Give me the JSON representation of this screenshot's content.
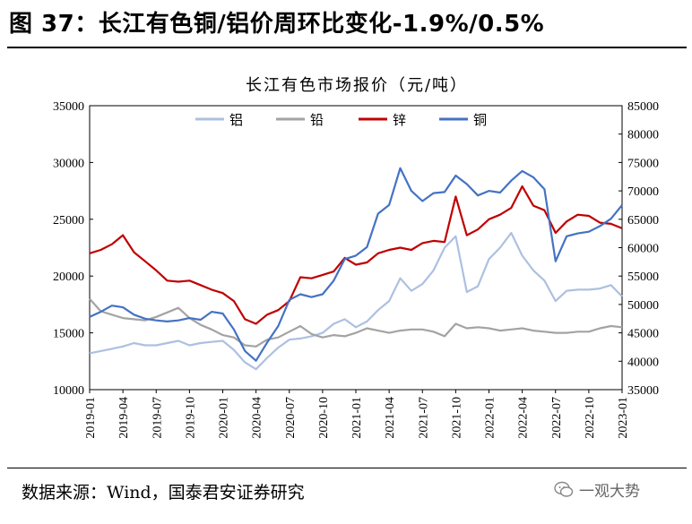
{
  "figure": {
    "title": "图 37：长江有色铜/铝价周环比变化-1.9%/0.5%",
    "source": "数据来源：Wind，国泰君安证券研究",
    "watermark": "一观大势"
  },
  "colors": {
    "aluminum": "#adc0e2",
    "lead": "#a3a3a3",
    "zinc": "#c00000",
    "copper": "#4472c4"
  },
  "chart_data": {
    "type": "line",
    "title": "长江有色市场报价（元/吨）",
    "xlabel": "",
    "ylabel": "",
    "x_ticks": [
      "2019-01",
      "2019-04",
      "2019-07",
      "2019-10",
      "2020-01",
      "2020-04",
      "2020-07",
      "2020-10",
      "2021-01",
      "2021-04",
      "2021-07",
      "2021-10",
      "2022-01",
      "2022-04",
      "2022-07",
      "2022-10",
      "2023-01"
    ],
    "xlim": [
      "2019-01",
      "2023-01"
    ],
    "ylim_left": [
      10000,
      35000
    ],
    "ylim_right": [
      35000,
      85000
    ],
    "yticks_left": [
      10000,
      15000,
      20000,
      25000,
      30000,
      35000
    ],
    "yticks_right": [
      35000,
      40000,
      45000,
      50000,
      55000,
      60000,
      65000,
      70000,
      75000,
      80000,
      85000
    ],
    "grid": false,
    "legend_position": "top",
    "series": [
      {
        "name": "铝",
        "axis": "left",
        "key": "aluminum",
        "points": [
          [
            "2019-01",
            13200
          ],
          [
            "2019-02",
            13400
          ],
          [
            "2019-03",
            13600
          ],
          [
            "2019-04",
            13800
          ],
          [
            "2019-05",
            14100
          ],
          [
            "2019-06",
            13900
          ],
          [
            "2019-07",
            13900
          ],
          [
            "2019-08",
            14100
          ],
          [
            "2019-09",
            14300
          ],
          [
            "2019-10",
            13900
          ],
          [
            "2019-11",
            14100
          ],
          [
            "2019-12",
            14200
          ],
          [
            "2020-01",
            14300
          ],
          [
            "2020-02",
            13500
          ],
          [
            "2020-03",
            12400
          ],
          [
            "2020-04",
            11800
          ],
          [
            "2020-05",
            12800
          ],
          [
            "2020-06",
            13700
          ],
          [
            "2020-07",
            14400
          ],
          [
            "2020-08",
            14500
          ],
          [
            "2020-09",
            14700
          ],
          [
            "2020-10",
            15000
          ],
          [
            "2020-11",
            15800
          ],
          [
            "2020-12",
            16200
          ],
          [
            "2021-01",
            15500
          ],
          [
            "2021-02",
            16000
          ],
          [
            "2021-03",
            17000
          ],
          [
            "2021-04",
            17800
          ],
          [
            "2021-05",
            19800
          ],
          [
            "2021-06",
            18700
          ],
          [
            "2021-07",
            19300
          ],
          [
            "2021-08",
            20500
          ],
          [
            "2021-09",
            22500
          ],
          [
            "2021-10",
            23500
          ],
          [
            "2021-11",
            18600
          ],
          [
            "2021-12",
            19100
          ],
          [
            "2022-01",
            21500
          ],
          [
            "2022-02",
            22500
          ],
          [
            "2022-03",
            23800
          ],
          [
            "2022-04",
            21800
          ],
          [
            "2022-05",
            20500
          ],
          [
            "2022-06",
            19600
          ],
          [
            "2022-07",
            17800
          ],
          [
            "2022-08",
            18700
          ],
          [
            "2022-09",
            18800
          ],
          [
            "2022-10",
            18800
          ],
          [
            "2022-11",
            18900
          ],
          [
            "2022-12",
            19200
          ],
          [
            "2023-01",
            18200
          ]
        ]
      },
      {
        "name": "铅",
        "axis": "left",
        "key": "lead",
        "points": [
          [
            "2019-01",
            18000
          ],
          [
            "2019-02",
            16900
          ],
          [
            "2019-03",
            16600
          ],
          [
            "2019-04",
            16300
          ],
          [
            "2019-05",
            16200
          ],
          [
            "2019-06",
            16100
          ],
          [
            "2019-07",
            16400
          ],
          [
            "2019-08",
            16800
          ],
          [
            "2019-09",
            17200
          ],
          [
            "2019-10",
            16300
          ],
          [
            "2019-11",
            15700
          ],
          [
            "2019-12",
            15300
          ],
          [
            "2020-01",
            14800
          ],
          [
            "2020-02",
            14600
          ],
          [
            "2020-03",
            13900
          ],
          [
            "2020-04",
            13800
          ],
          [
            "2020-05",
            14400
          ],
          [
            "2020-06",
            14600
          ],
          [
            "2020-07",
            15100
          ],
          [
            "2020-08",
            15600
          ],
          [
            "2020-09",
            14900
          ],
          [
            "2020-10",
            14600
          ],
          [
            "2020-11",
            14800
          ],
          [
            "2020-12",
            14700
          ],
          [
            "2021-01",
            15000
          ],
          [
            "2021-02",
            15400
          ],
          [
            "2021-03",
            15200
          ],
          [
            "2021-04",
            15000
          ],
          [
            "2021-05",
            15200
          ],
          [
            "2021-06",
            15300
          ],
          [
            "2021-07",
            15300
          ],
          [
            "2021-08",
            15100
          ],
          [
            "2021-09",
            14700
          ],
          [
            "2021-10",
            15800
          ],
          [
            "2021-11",
            15400
          ],
          [
            "2021-12",
            15500
          ],
          [
            "2022-01",
            15400
          ],
          [
            "2022-02",
            15200
          ],
          [
            "2022-03",
            15300
          ],
          [
            "2022-04",
            15400
          ],
          [
            "2022-05",
            15200
          ],
          [
            "2022-06",
            15100
          ],
          [
            "2022-07",
            15000
          ],
          [
            "2022-08",
            15000
          ],
          [
            "2022-09",
            15100
          ],
          [
            "2022-10",
            15100
          ],
          [
            "2022-11",
            15400
          ],
          [
            "2022-12",
            15600
          ],
          [
            "2023-01",
            15500
          ]
        ]
      },
      {
        "name": "锌",
        "axis": "left",
        "key": "zinc",
        "points": [
          [
            "2019-01",
            22000
          ],
          [
            "2019-02",
            22300
          ],
          [
            "2019-03",
            22800
          ],
          [
            "2019-04",
            23600
          ],
          [
            "2019-05",
            22100
          ],
          [
            "2019-06",
            21300
          ],
          [
            "2019-07",
            20500
          ],
          [
            "2019-08",
            19600
          ],
          [
            "2019-09",
            19500
          ],
          [
            "2019-10",
            19600
          ],
          [
            "2019-11",
            19200
          ],
          [
            "2019-12",
            18800
          ],
          [
            "2020-01",
            18500
          ],
          [
            "2020-02",
            17800
          ],
          [
            "2020-03",
            16200
          ],
          [
            "2020-04",
            15800
          ],
          [
            "2020-05",
            16600
          ],
          [
            "2020-06",
            17000
          ],
          [
            "2020-07",
            17800
          ],
          [
            "2020-08",
            19900
          ],
          [
            "2020-09",
            19800
          ],
          [
            "2020-10",
            20100
          ],
          [
            "2020-11",
            20400
          ],
          [
            "2020-12",
            21600
          ],
          [
            "2021-01",
            21000
          ],
          [
            "2021-02",
            21200
          ],
          [
            "2021-03",
            22000
          ],
          [
            "2021-04",
            22300
          ],
          [
            "2021-05",
            22500
          ],
          [
            "2021-06",
            22300
          ],
          [
            "2021-07",
            22900
          ],
          [
            "2021-08",
            23100
          ],
          [
            "2021-09",
            23000
          ],
          [
            "2021-10",
            27000
          ],
          [
            "2021-11",
            23600
          ],
          [
            "2021-12",
            24100
          ],
          [
            "2022-01",
            25000
          ],
          [
            "2022-02",
            25400
          ],
          [
            "2022-03",
            26000
          ],
          [
            "2022-04",
            27900
          ],
          [
            "2022-05",
            26200
          ],
          [
            "2022-06",
            25800
          ],
          [
            "2022-07",
            23800
          ],
          [
            "2022-08",
            24800
          ],
          [
            "2022-09",
            25400
          ],
          [
            "2022-10",
            25300
          ],
          [
            "2022-11",
            24700
          ],
          [
            "2022-12",
            24600
          ],
          [
            "2023-01",
            24200
          ]
        ]
      },
      {
        "name": "铜",
        "axis": "right",
        "key": "copper",
        "points": [
          [
            "2019-01",
            47800
          ],
          [
            "2019-02",
            48700
          ],
          [
            "2019-03",
            49800
          ],
          [
            "2019-04",
            49500
          ],
          [
            "2019-05",
            48200
          ],
          [
            "2019-06",
            47500
          ],
          [
            "2019-07",
            47200
          ],
          [
            "2019-08",
            47000
          ],
          [
            "2019-09",
            47200
          ],
          [
            "2019-10",
            47600
          ],
          [
            "2019-11",
            47300
          ],
          [
            "2019-12",
            48700
          ],
          [
            "2020-01",
            48400
          ],
          [
            "2020-02",
            45600
          ],
          [
            "2020-03",
            41800
          ],
          [
            "2020-04",
            40100
          ],
          [
            "2020-05",
            43300
          ],
          [
            "2020-06",
            46200
          ],
          [
            "2020-07",
            50800
          ],
          [
            "2020-08",
            51800
          ],
          [
            "2020-09",
            51300
          ],
          [
            "2020-10",
            51800
          ],
          [
            "2020-11",
            54200
          ],
          [
            "2020-12",
            58000
          ],
          [
            "2021-01",
            58600
          ],
          [
            "2021-02",
            60100
          ],
          [
            "2021-03",
            66000
          ],
          [
            "2021-04",
            67500
          ],
          [
            "2021-05",
            74000
          ],
          [
            "2021-06",
            70000
          ],
          [
            "2021-07",
            68200
          ],
          [
            "2021-08",
            69600
          ],
          [
            "2021-09",
            69800
          ],
          [
            "2021-10",
            72700
          ],
          [
            "2021-11",
            71200
          ],
          [
            "2021-12",
            69200
          ],
          [
            "2022-01",
            70000
          ],
          [
            "2022-02",
            69700
          ],
          [
            "2022-03",
            71800
          ],
          [
            "2022-04",
            73500
          ],
          [
            "2022-05",
            72400
          ],
          [
            "2022-06",
            70300
          ],
          [
            "2022-07",
            57600
          ],
          [
            "2022-08",
            62000
          ],
          [
            "2022-09",
            62500
          ],
          [
            "2022-10",
            62800
          ],
          [
            "2022-11",
            63800
          ],
          [
            "2022-12",
            65100
          ],
          [
            "2023-01",
            67500
          ]
        ]
      }
    ]
  }
}
